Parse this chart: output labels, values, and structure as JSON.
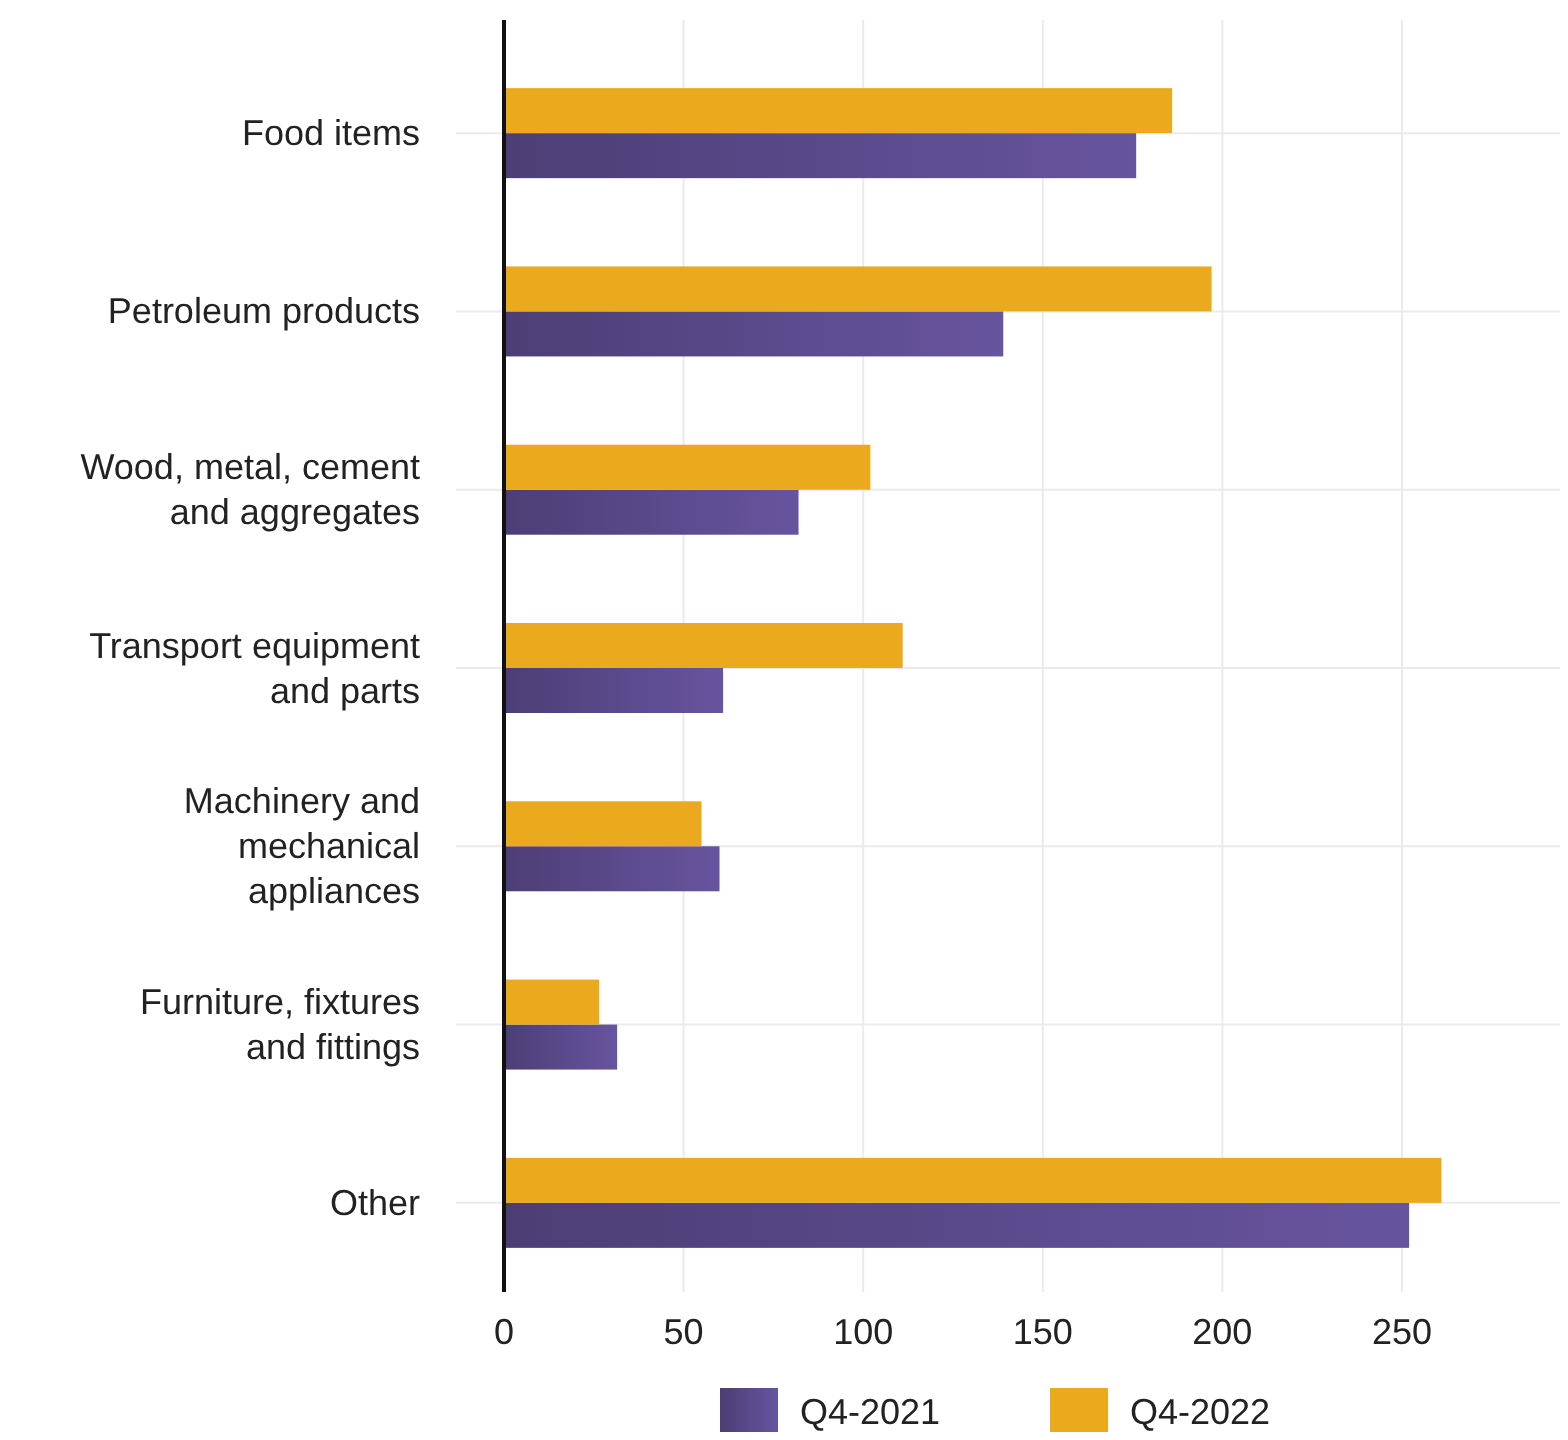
{
  "chart_data": {
    "type": "bar",
    "orientation": "horizontal",
    "categories": [
      "Food items",
      "Petroleum products",
      "Wood, metal, cement and aggregates",
      "Transport equipment and parts",
      "Machinery and mechanical appliances",
      "Furniture, fixtures and fittings",
      "Other"
    ],
    "series": [
      {
        "name": "Q4-2021",
        "color": "#5b4a8c",
        "values": [
          176,
          139,
          82,
          61,
          60,
          31.5,
          252
        ]
      },
      {
        "name": "Q4-2022",
        "color": "#eba91e",
        "values": [
          186,
          197,
          102,
          111,
          55,
          26.5,
          261
        ]
      }
    ],
    "xlim": [
      0,
      294
    ],
    "xticks": [
      0,
      50,
      100,
      150,
      200,
      250
    ],
    "grid": true,
    "legend": "bottom"
  }
}
